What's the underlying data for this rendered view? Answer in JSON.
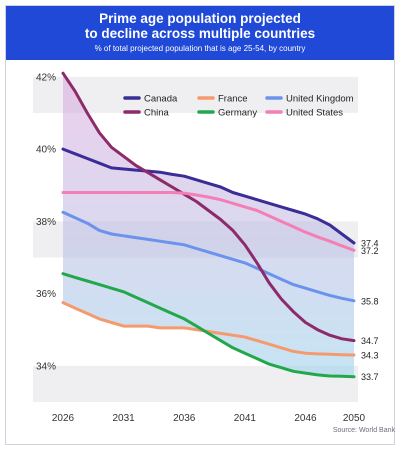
{
  "header": {
    "title_line1": "Prime age population projected",
    "title_line2": "to decline across multiple countries",
    "subtitle": "% of total projected population that is age 25-54, by country"
  },
  "source": "Source: World Bank",
  "chart_data": {
    "type": "line",
    "title": "Prime age population projected to decline across multiple countries",
    "subtitle": "% of total projected population that is age 25-54, by country",
    "xlabel": "",
    "ylabel": "",
    "x": [
      2026,
      2027,
      2028,
      2029,
      2030,
      2031,
      2032,
      2033,
      2034,
      2035,
      2036,
      2037,
      2038,
      2039,
      2040,
      2041,
      2042,
      2043,
      2044,
      2045,
      2046,
      2047,
      2048,
      2049,
      2050
    ],
    "x_ticks": [
      2026,
      2031,
      2036,
      2041,
      2046,
      2050
    ],
    "y_ticks": [
      34,
      36,
      38,
      40,
      42
    ],
    "y_tick_labels": [
      "34%",
      "36%",
      "38%",
      "40%",
      "42%"
    ],
    "xlim": [
      2026,
      2050
    ],
    "ylim": [
      33,
      42.3
    ],
    "grid": "horizontal bands",
    "legend_position": "top-right",
    "series": [
      {
        "name": "Canada",
        "color": "#3a2d97",
        "values": [
          40.0,
          39.87,
          39.74,
          39.61,
          39.48,
          39.45,
          39.42,
          39.39,
          39.36,
          39.3,
          39.25,
          39.15,
          39.05,
          38.95,
          38.8,
          38.7,
          38.6,
          38.5,
          38.4,
          38.3,
          38.2,
          38.07,
          37.9,
          37.65,
          37.4
        ]
      },
      {
        "name": "France",
        "color": "#f59a6e",
        "values": [
          35.75,
          35.6,
          35.45,
          35.3,
          35.2,
          35.1,
          35.1,
          35.1,
          35.05,
          35.05,
          35.05,
          35.0,
          34.95,
          34.9,
          34.85,
          34.8,
          34.7,
          34.6,
          34.5,
          34.4,
          34.35,
          34.33,
          34.32,
          34.31,
          34.3
        ]
      },
      {
        "name": "United Kingdom",
        "color": "#6b93ee",
        "values": [
          38.25,
          38.1,
          37.95,
          37.75,
          37.65,
          37.6,
          37.55,
          37.5,
          37.45,
          37.4,
          37.35,
          37.25,
          37.15,
          37.05,
          36.95,
          36.85,
          36.7,
          36.55,
          36.4,
          36.25,
          36.15,
          36.05,
          35.95,
          35.87,
          35.8
        ]
      },
      {
        "name": "China",
        "color": "#8c2a6a",
        "values": [
          42.1,
          41.6,
          41.0,
          40.45,
          40.05,
          39.8,
          39.55,
          39.35,
          39.15,
          38.95,
          38.75,
          38.55,
          38.3,
          38.05,
          37.75,
          37.35,
          36.85,
          36.3,
          35.85,
          35.5,
          35.2,
          35.0,
          34.85,
          34.75,
          34.7
        ]
      },
      {
        "name": "Germany",
        "color": "#22a84a",
        "values": [
          36.55,
          36.45,
          36.35,
          36.25,
          36.15,
          36.05,
          35.9,
          35.75,
          35.6,
          35.45,
          35.3,
          35.1,
          34.9,
          34.7,
          34.5,
          34.35,
          34.2,
          34.05,
          33.95,
          33.85,
          33.8,
          33.75,
          33.72,
          33.71,
          33.7
        ]
      },
      {
        "name": "United States",
        "color": "#f47eb5",
        "values": [
          38.8,
          38.8,
          38.8,
          38.8,
          38.8,
          38.8,
          38.8,
          38.8,
          38.8,
          38.8,
          38.78,
          38.73,
          38.67,
          38.6,
          38.5,
          38.4,
          38.3,
          38.15,
          38.0,
          37.85,
          37.7,
          37.57,
          37.45,
          37.32,
          37.2
        ]
      }
    ],
    "end_labels": [
      {
        "series": "Canada",
        "text": "37.4"
      },
      {
        "series": "United States",
        "text": "37.2"
      },
      {
        "series": "United Kingdom",
        "text": "35.8"
      },
      {
        "series": "China",
        "text": "34.7"
      },
      {
        "series": "France",
        "text": "34.3"
      },
      {
        "series": "Germany",
        "text": "33.7"
      }
    ],
    "shading": {
      "top_color": "#d99fd9",
      "bottom_color": "#9fd3ec"
    }
  }
}
